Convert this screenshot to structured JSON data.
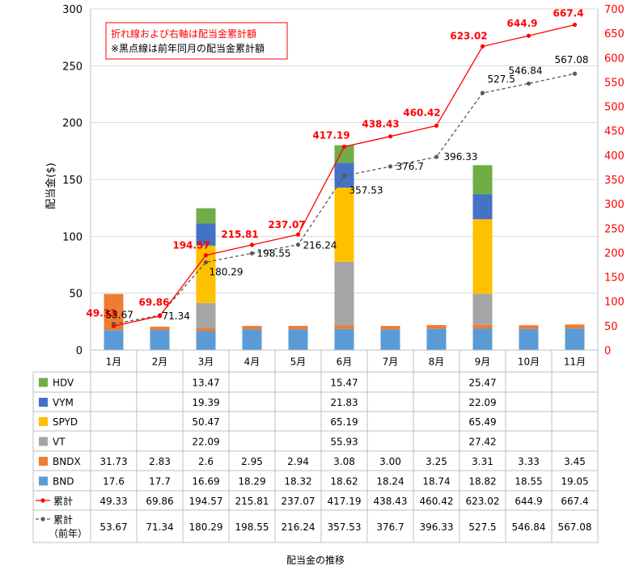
{
  "chart_data": {
    "type": "bar",
    "caption": "配当金の推移",
    "ylabel": "配当金($)",
    "ylim": [
      0,
      300
    ],
    "y_ticks": [
      0,
      50,
      100,
      150,
      200,
      250,
      300
    ],
    "y2lim": [
      0,
      700
    ],
    "y2_ticks": [
      0,
      50,
      100,
      150,
      200,
      250,
      300,
      350,
      400,
      450,
      500,
      550,
      600,
      650,
      700
    ],
    "note_line1": "折れ線および右軸は配当金累計額",
    "note_line2": "※黒点線は前年同月の配当金累計額",
    "categories": [
      "1月",
      "2月",
      "3月",
      "4月",
      "5月",
      "6月",
      "7月",
      "8月",
      "9月",
      "10月",
      "11月"
    ],
    "series": [
      {
        "name": "HDV",
        "color": "#70ad47",
        "values": [
          "",
          "",
          "13.47",
          "",
          "",
          "15.47",
          "",
          "",
          "25.47",
          "",
          ""
        ]
      },
      {
        "name": "VYM",
        "color": "#4472c4",
        "values": [
          "",
          "",
          "19.39",
          "",
          "",
          "21.83",
          "",
          "",
          "22.09",
          "",
          ""
        ]
      },
      {
        "name": "SPYD",
        "color": "#ffc000",
        "values": [
          "",
          "",
          "50.47",
          "",
          "",
          "65.19",
          "",
          "",
          "65.49",
          "",
          ""
        ]
      },
      {
        "name": "VT",
        "color": "#a5a5a5",
        "values": [
          "",
          "",
          "22.09",
          "",
          "",
          "55.93",
          "",
          "",
          "27.42",
          "",
          ""
        ]
      },
      {
        "name": "BNDX",
        "color": "#ed7d31",
        "values": [
          "31.73",
          "2.83",
          "2.6",
          "2.95",
          "2.94",
          "3.08",
          "3.00",
          "3.25",
          "3.31",
          "3.33",
          "3.45"
        ]
      },
      {
        "name": "BND",
        "color": "#5b9bd5",
        "values": [
          "17.6",
          "17.7",
          "16.69",
          "18.29",
          "18.32",
          "18.62",
          "18.24",
          "18.74",
          "18.82",
          "18.55",
          "19.05"
        ]
      }
    ],
    "cumulative": {
      "name": "累計",
      "color": "#ff0000",
      "values": [
        "49.33",
        "69.86",
        "194.57",
        "215.81",
        "237.07",
        "417.19",
        "438.43",
        "460.42",
        "623.02",
        "644.9",
        "667.4"
      ]
    },
    "cumulative_prev": {
      "name_line1": "累計",
      "name_line2": "（前年）",
      "color": "#595959",
      "values": [
        "53.67",
        "71.34",
        "180.29",
        "198.55",
        "216.24",
        "357.53",
        "376.7",
        "396.33",
        "527.5",
        "546.84",
        "567.08"
      ]
    }
  }
}
